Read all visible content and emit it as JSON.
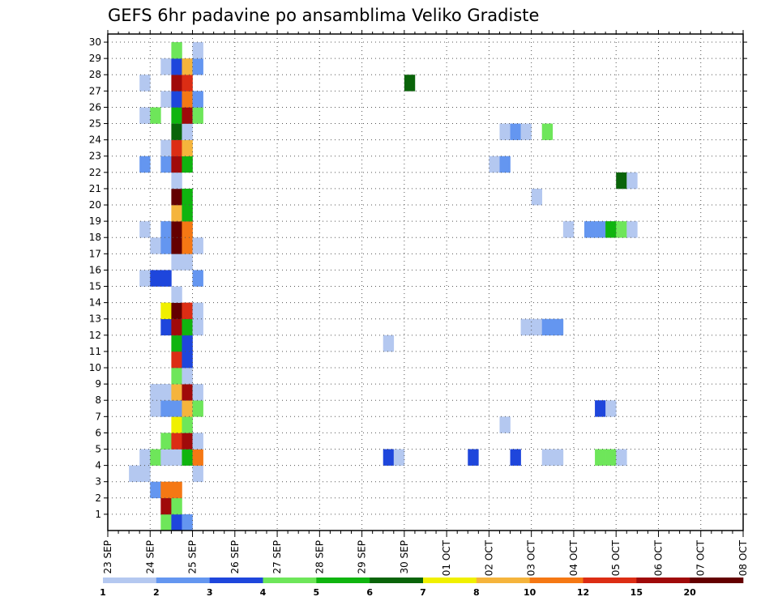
{
  "chart_data": {
    "type": "heatmap",
    "title": "GEFS 6hr padavine po ansamblima Veliko Gradiste",
    "xlabel": "",
    "ylabel": "",
    "x_ticks": [
      "23 SEP",
      "24 SEP",
      "25 SEP",
      "26 SEP",
      "27 SEP",
      "28 SEP",
      "29 SEP",
      "30 SEP",
      "01 OCT",
      "02 OCT",
      "03 OCT",
      "04 OCT",
      "05 OCT",
      "06 OCT",
      "07 OCT",
      "08 OCT"
    ],
    "y_ticks": [
      "1",
      "2",
      "3",
      "4",
      "5",
      "6",
      "7",
      "8",
      "9",
      "10",
      "11",
      "12",
      "13",
      "14",
      "15",
      "16",
      "17",
      "18",
      "19",
      "20",
      "21",
      "22",
      "23",
      "24",
      "25",
      "26",
      "27",
      "28",
      "29",
      "30"
    ],
    "steps_per_day": 4,
    "grid": "dotted",
    "legend": {
      "position": "bottom",
      "colors": [
        "#b4c8f0",
        "#6496f0",
        "#1e46dc",
        "#6ee65a",
        "#0fb40f",
        "#0a640a",
        "#f0f000",
        "#f5b43c",
        "#f57814",
        "#dc2d14",
        "#a00a0a",
        "#640000"
      ],
      "labels": [
        "1",
        "2",
        "3",
        "4",
        "5",
        "6",
        "7",
        "8",
        "10",
        "12",
        "15",
        "20"
      ]
    },
    "cells": [
      [
        0,
        5,
        4
      ],
      [
        0,
        6,
        3
      ],
      [
        0,
        7,
        2
      ],
      [
        1,
        5,
        11
      ],
      [
        1,
        6,
        4
      ],
      [
        2,
        4,
        2
      ],
      [
        2,
        5,
        9
      ],
      [
        2,
        6,
        9
      ],
      [
        3,
        2,
        1
      ],
      [
        3,
        3,
        1
      ],
      [
        3,
        8,
        1
      ],
      [
        4,
        3,
        1
      ],
      [
        4,
        4,
        4
      ],
      [
        4,
        5,
        1
      ],
      [
        4,
        6,
        1
      ],
      [
        4,
        7,
        5
      ],
      [
        4,
        8,
        9
      ],
      [
        4,
        26,
        3
      ],
      [
        4,
        27,
        1
      ],
      [
        4,
        34,
        3
      ],
      [
        4,
        38,
        3
      ],
      [
        4,
        41,
        1
      ],
      [
        4,
        42,
        1
      ],
      [
        4,
        46,
        4
      ],
      [
        4,
        47,
        4
      ],
      [
        4,
        48,
        1
      ],
      [
        5,
        5,
        4
      ],
      [
        5,
        6,
        10
      ],
      [
        5,
        7,
        11
      ],
      [
        5,
        8,
        1
      ],
      [
        6,
        6,
        7
      ],
      [
        6,
        7,
        4
      ],
      [
        6,
        37,
        1
      ],
      [
        7,
        4,
        1
      ],
      [
        7,
        5,
        2
      ],
      [
        7,
        6,
        2
      ],
      [
        7,
        7,
        8
      ],
      [
        7,
        8,
        4
      ],
      [
        7,
        46,
        3
      ],
      [
        7,
        47,
        1
      ],
      [
        8,
        4,
        1
      ],
      [
        8,
        5,
        1
      ],
      [
        8,
        6,
        8
      ],
      [
        8,
        7,
        11
      ],
      [
        8,
        8,
        1
      ],
      [
        9,
        6,
        4
      ],
      [
        9,
        7,
        1
      ],
      [
        10,
        6,
        10
      ],
      [
        10,
        7,
        3
      ],
      [
        11,
        6,
        5
      ],
      [
        11,
        7,
        3
      ],
      [
        11,
        26,
        1
      ],
      [
        12,
        5,
        3
      ],
      [
        12,
        6,
        11
      ],
      [
        12,
        7,
        5
      ],
      [
        12,
        8,
        1
      ],
      [
        12,
        39,
        1
      ],
      [
        12,
        40,
        1
      ],
      [
        12,
        41,
        2
      ],
      [
        12,
        42,
        2
      ],
      [
        13,
        5,
        7
      ],
      [
        13,
        6,
        12
      ],
      [
        13,
        7,
        10
      ],
      [
        13,
        8,
        1
      ],
      [
        14,
        6,
        1
      ],
      [
        15,
        3,
        1
      ],
      [
        15,
        4,
        3
      ],
      [
        15,
        5,
        3
      ],
      [
        15,
        8,
        2
      ],
      [
        16,
        6,
        1
      ],
      [
        16,
        7,
        1
      ],
      [
        17,
        4,
        1
      ],
      [
        17,
        5,
        2
      ],
      [
        17,
        6,
        12
      ],
      [
        17,
        7,
        9
      ],
      [
        17,
        8,
        1
      ],
      [
        18,
        3,
        1
      ],
      [
        18,
        5,
        2
      ],
      [
        18,
        6,
        12
      ],
      [
        18,
        7,
        9
      ],
      [
        18,
        43,
        1
      ],
      [
        18,
        45,
        2
      ],
      [
        18,
        46,
        2
      ],
      [
        18,
        47,
        5
      ],
      [
        18,
        48,
        4
      ],
      [
        18,
        49,
        1
      ],
      [
        19,
        6,
        8
      ],
      [
        19,
        7,
        5
      ],
      [
        20,
        6,
        12
      ],
      [
        20,
        7,
        5
      ],
      [
        20,
        40,
        1
      ],
      [
        21,
        6,
        1
      ],
      [
        21,
        48,
        6
      ],
      [
        21,
        49,
        1
      ],
      [
        22,
        3,
        2
      ],
      [
        22,
        5,
        2
      ],
      [
        22,
        6,
        11
      ],
      [
        22,
        7,
        5
      ],
      [
        22,
        36,
        1
      ],
      [
        22,
        37,
        2
      ],
      [
        23,
        5,
        1
      ],
      [
        23,
        6,
        10
      ],
      [
        23,
        7,
        8
      ],
      [
        24,
        6,
        6
      ],
      [
        24,
        7,
        1
      ],
      [
        24,
        37,
        1
      ],
      [
        24,
        38,
        2
      ],
      [
        24,
        39,
        1
      ],
      [
        24,
        41,
        4
      ],
      [
        25,
        3,
        1
      ],
      [
        25,
        4,
        4
      ],
      [
        25,
        6,
        5
      ],
      [
        25,
        7,
        11
      ],
      [
        25,
        8,
        4
      ],
      [
        26,
        5,
        1
      ],
      [
        26,
        6,
        3
      ],
      [
        26,
        7,
        9
      ],
      [
        26,
        8,
        2
      ],
      [
        27,
        3,
        1
      ],
      [
        27,
        6,
        11
      ],
      [
        27,
        7,
        10
      ],
      [
        27,
        28,
        6
      ],
      [
        28,
        5,
        1
      ],
      [
        28,
        6,
        3
      ],
      [
        28,
        7,
        8
      ],
      [
        28,
        8,
        2
      ],
      [
        29,
        6,
        4
      ],
      [
        29,
        8,
        1
      ]
    ]
  }
}
